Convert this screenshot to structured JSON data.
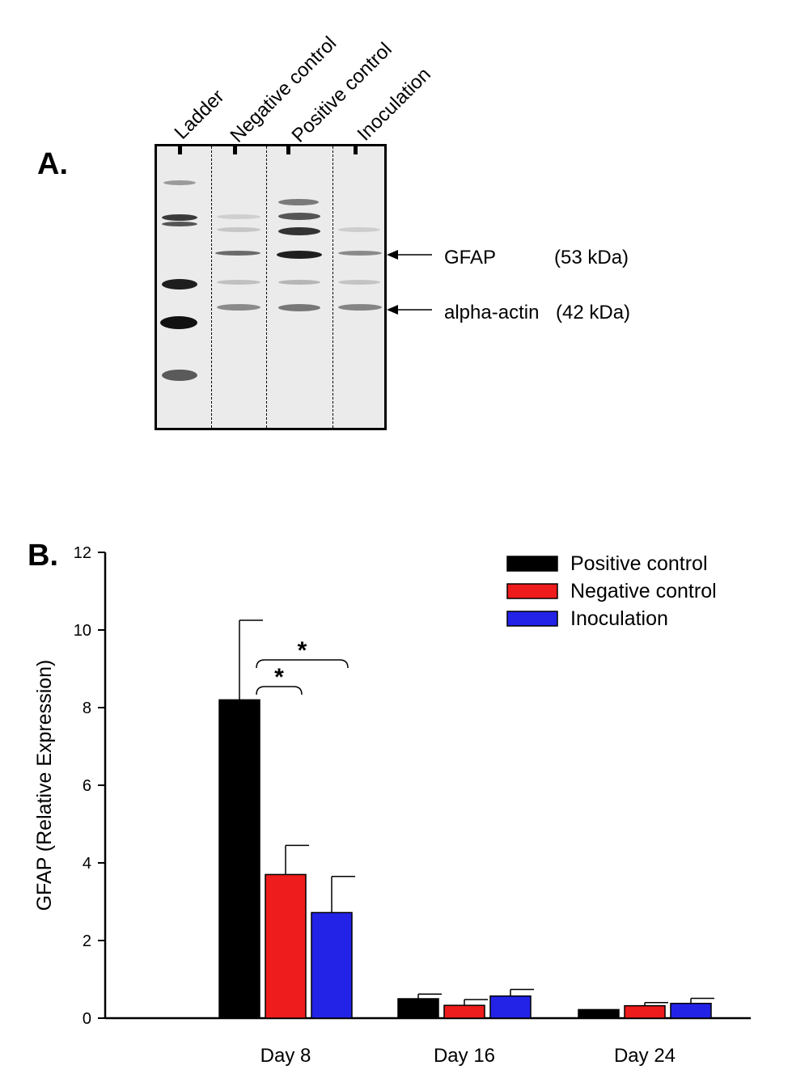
{
  "panel_a": {
    "letter": "A.",
    "lanes": [
      "Ladder",
      "Negative control",
      "Positive control",
      "Inoculation"
    ],
    "band_labels": [
      {
        "name": "GFAP",
        "size": "(53 kDa)"
      },
      {
        "name": "alpha-actin",
        "size": "(42 kDa)"
      }
    ]
  },
  "panel_b": {
    "letter": "B."
  },
  "chart_data": {
    "type": "bar",
    "categories": [
      "Day 8",
      "Day 16",
      "Day 24"
    ],
    "series": [
      {
        "name": "Positive control",
        "color": "#000000",
        "values": [
          8.2,
          0.5,
          0.22
        ],
        "error": [
          2.05,
          0.12,
          0.0
        ]
      },
      {
        "name": "Negative control",
        "color": "#ee1c1c",
        "values": [
          3.7,
          0.33,
          0.32
        ],
        "error": [
          0.75,
          0.15,
          0.08
        ]
      },
      {
        "name": "Inoculation",
        "color": "#2323e8",
        "values": [
          2.72,
          0.57,
          0.38
        ],
        "error": [
          0.93,
          0.17,
          0.13
        ]
      }
    ],
    "ylabel": "GFAP (Relative Expression)",
    "xlabel": "",
    "ylim": [
      0,
      12
    ],
    "yticks": [
      0,
      2,
      4,
      6,
      8,
      10,
      12
    ],
    "legend": "top-right",
    "significance": [
      {
        "between": [
          "Positive control",
          "Negative control"
        ],
        "category": "Day 8",
        "label": "*"
      },
      {
        "between": [
          "Positive control",
          "Inoculation"
        ],
        "category": "Day 8",
        "label": "*"
      }
    ]
  }
}
